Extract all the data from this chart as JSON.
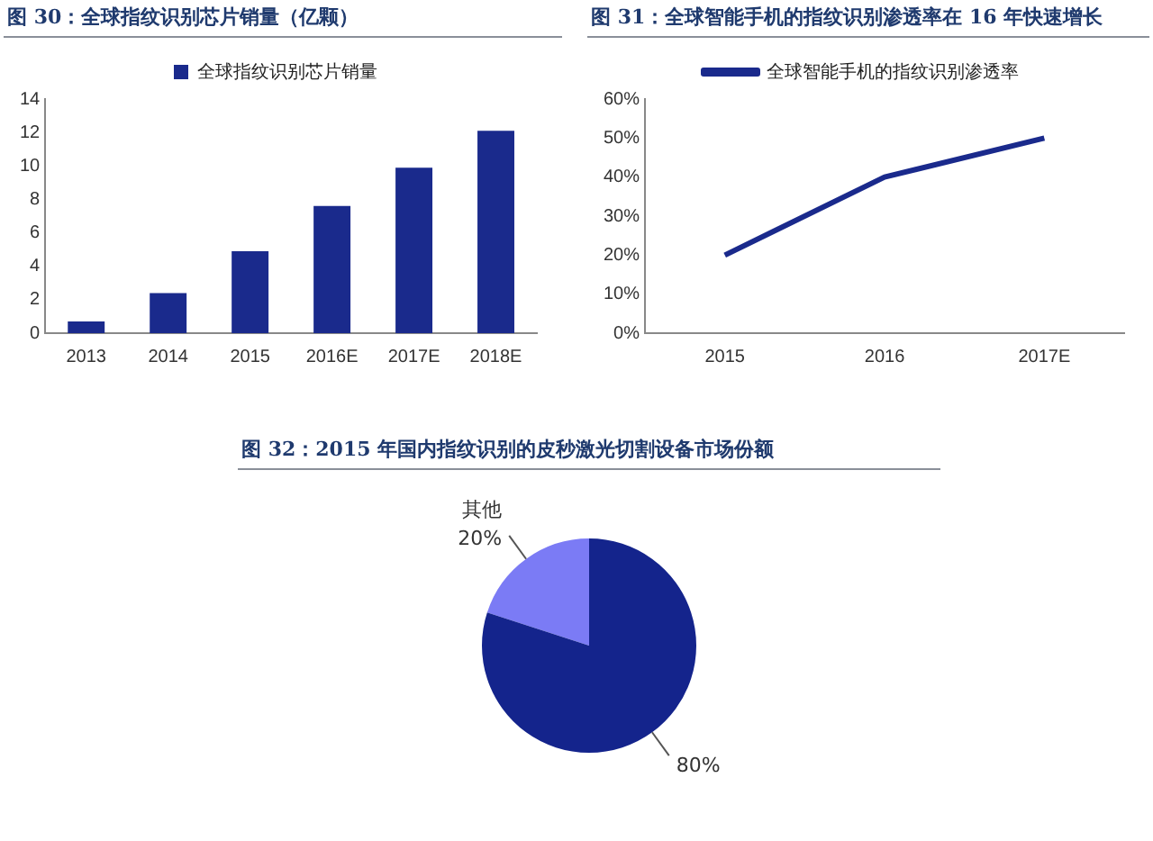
{
  "chart_data": [
    {
      "type": "bar",
      "title": "图 30：全球指纹识别芯片销量（亿颗）",
      "categories": [
        "2013",
        "2014",
        "2015",
        "2016E",
        "2017E",
        "2018E"
      ],
      "series": [
        {
          "name": "全球指纹识别芯片销量",
          "color": "#1a2a8c",
          "values": [
            0.7,
            2.4,
            4.9,
            7.6,
            9.9,
            12.1
          ]
        }
      ],
      "ylim": [
        0,
        14
      ],
      "yticks": [
        0,
        2,
        4,
        6,
        8,
        10,
        12,
        14
      ],
      "grid": false,
      "legend": "top"
    },
    {
      "type": "line",
      "title": "图 31：全球智能手机的指纹识别渗透率在 16 年快速增长",
      "categories": [
        "2015",
        "2016",
        "2017E"
      ],
      "series": [
        {
          "name": "全球智能手机的指纹识别渗透率",
          "color": "#1a2a8c",
          "values": [
            20,
            40,
            50
          ]
        }
      ],
      "ylim": [
        0,
        60
      ],
      "yticks": [
        {
          "value": 0,
          "label": "0%"
        },
        {
          "value": 10,
          "label": "10%"
        },
        {
          "value": 20,
          "label": "20%"
        },
        {
          "value": 30,
          "label": "30%"
        },
        {
          "value": 40,
          "label": "40%"
        },
        {
          "value": 50,
          "label": "50%"
        },
        {
          "value": 60,
          "label": "60%"
        }
      ],
      "grid": false,
      "legend": "top",
      "marker": "none"
    },
    {
      "type": "pie",
      "title": "图 32：2015 年国内指纹识别的皮秒激光切割设备市场份额",
      "categories": [
        "其他",
        null
      ],
      "values": [
        20,
        80
      ],
      "colors": [
        "#7b7bf5",
        "#14248c"
      ],
      "value_labels": [
        "20%",
        "80%"
      ],
      "legend": false
    }
  ]
}
